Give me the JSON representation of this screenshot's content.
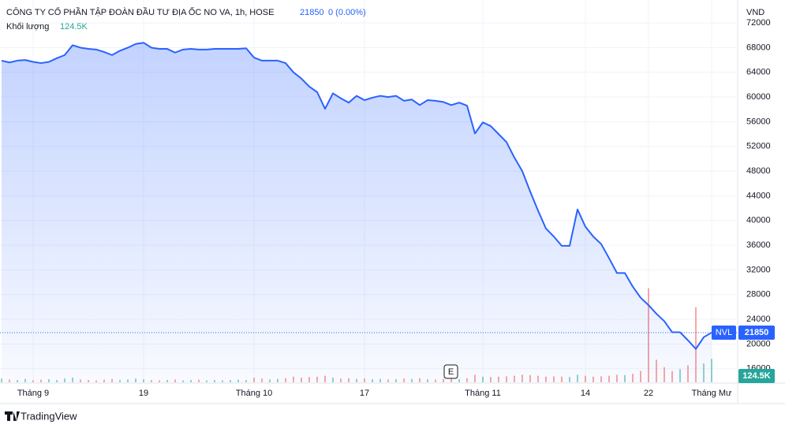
{
  "chart_data": {
    "type": "area",
    "title": "CÔNG TY CỔ PHẦN TẬP ĐOÀN ĐẦU TƯ ĐỊA ỐC NO VA, 1h, HOSE",
    "change_label": "0 (0.00%)",
    "symbol": "NVL",
    "currency": "VND",
    "volume_label": "Khối lượng",
    "event_marker": "E",
    "brand": "TradingView",
    "categories": [
      null,
      null,
      null,
      null,
      "Tháng 9",
      null,
      null,
      null,
      null,
      null,
      null,
      null,
      null,
      null,
      null,
      null,
      null,
      null,
      "19",
      null,
      null,
      null,
      null,
      null,
      null,
      null,
      null,
      null,
      null,
      null,
      null,
      null,
      "Tháng 10",
      null,
      null,
      null,
      null,
      null,
      null,
      null,
      null,
      null,
      null,
      null,
      null,
      null,
      "17",
      null,
      null,
      null,
      null,
      null,
      null,
      null,
      null,
      null,
      null,
      null,
      null,
      null,
      null,
      "Tháng 11",
      null,
      null,
      null,
      null,
      null,
      null,
      null,
      null,
      null,
      null,
      null,
      null,
      "14",
      null,
      null,
      null,
      null,
      null,
      null,
      null,
      "22",
      null,
      null,
      null,
      null,
      null,
      null,
      null,
      "Tháng Mư"
    ],
    "series": [
      {
        "name": "NVL",
        "color": "#2962ff",
        "values": [
          65900,
          65600,
          65900,
          66000,
          65700,
          65500,
          65700,
          66300,
          66800,
          68400,
          68000,
          67800,
          67700,
          67300,
          66800,
          67500,
          68000,
          68600,
          68800,
          68000,
          67800,
          67800,
          67200,
          67700,
          67800,
          67700,
          67700,
          67800,
          67800,
          67800,
          67800,
          67900,
          66400,
          65900,
          65900,
          65900,
          65500,
          64000,
          63000,
          61700,
          60800,
          58100,
          60600,
          59800,
          59100,
          60200,
          59500,
          59900,
          60200,
          60000,
          60200,
          59400,
          59600,
          58700,
          59500,
          59400,
          59200,
          58700,
          59100,
          58600,
          54100,
          55900,
          55300,
          54000,
          52700,
          50200,
          48000,
          44700,
          41600,
          38700,
          37400,
          35900,
          35900,
          41800,
          39000,
          37400,
          36200,
          33900,
          31500,
          31500,
          29300,
          27500,
          26300,
          24900,
          23700,
          21900,
          21900,
          20600,
          19200,
          21100,
          21850
        ]
      },
      {
        "name": "Khối lượng",
        "color": "#26a69a",
        "axis": "y2",
        "values": [
          20000,
          15000,
          12000,
          18000,
          10000,
          14000,
          16000,
          12000,
          20000,
          25000,
          15000,
          12000,
          10000,
          14000,
          18000,
          12000,
          15000,
          20000,
          16000,
          12000,
          10000,
          12000,
          15000,
          10000,
          12000,
          14000,
          10000,
          12000,
          10000,
          12000,
          14000,
          12000,
          25000,
          20000,
          15000,
          18000,
          22000,
          30000,
          25000,
          28000,
          30000,
          35000,
          25000,
          20000,
          22000,
          18000,
          20000,
          16000,
          18000,
          15000,
          16000,
          20000,
          18000,
          22000,
          16000,
          15000,
          18000,
          20000,
          16000,
          22000,
          40000,
          30000,
          28000,
          30000,
          32000,
          35000,
          40000,
          38000,
          35000,
          30000,
          32000,
          30000,
          28000,
          40000,
          35000,
          30000,
          32000,
          35000,
          40000,
          38000,
          45000,
          60000,
          500000,
          120000,
          80000,
          60000,
          70000,
          90000,
          400000,
          100000,
          124500
        ],
        "value_labels": {
          "90": "124.5K"
        }
      }
    ],
    "ylim": [
      13800,
      74700
    ],
    "yticks": [
      16000,
      20000,
      24000,
      28000,
      32000,
      36000,
      40000,
      44000,
      48000,
      52000,
      56000,
      60000,
      64000,
      68000,
      72000
    ],
    "y2lim": [
      0,
      2000000
    ],
    "grid": true
  }
}
